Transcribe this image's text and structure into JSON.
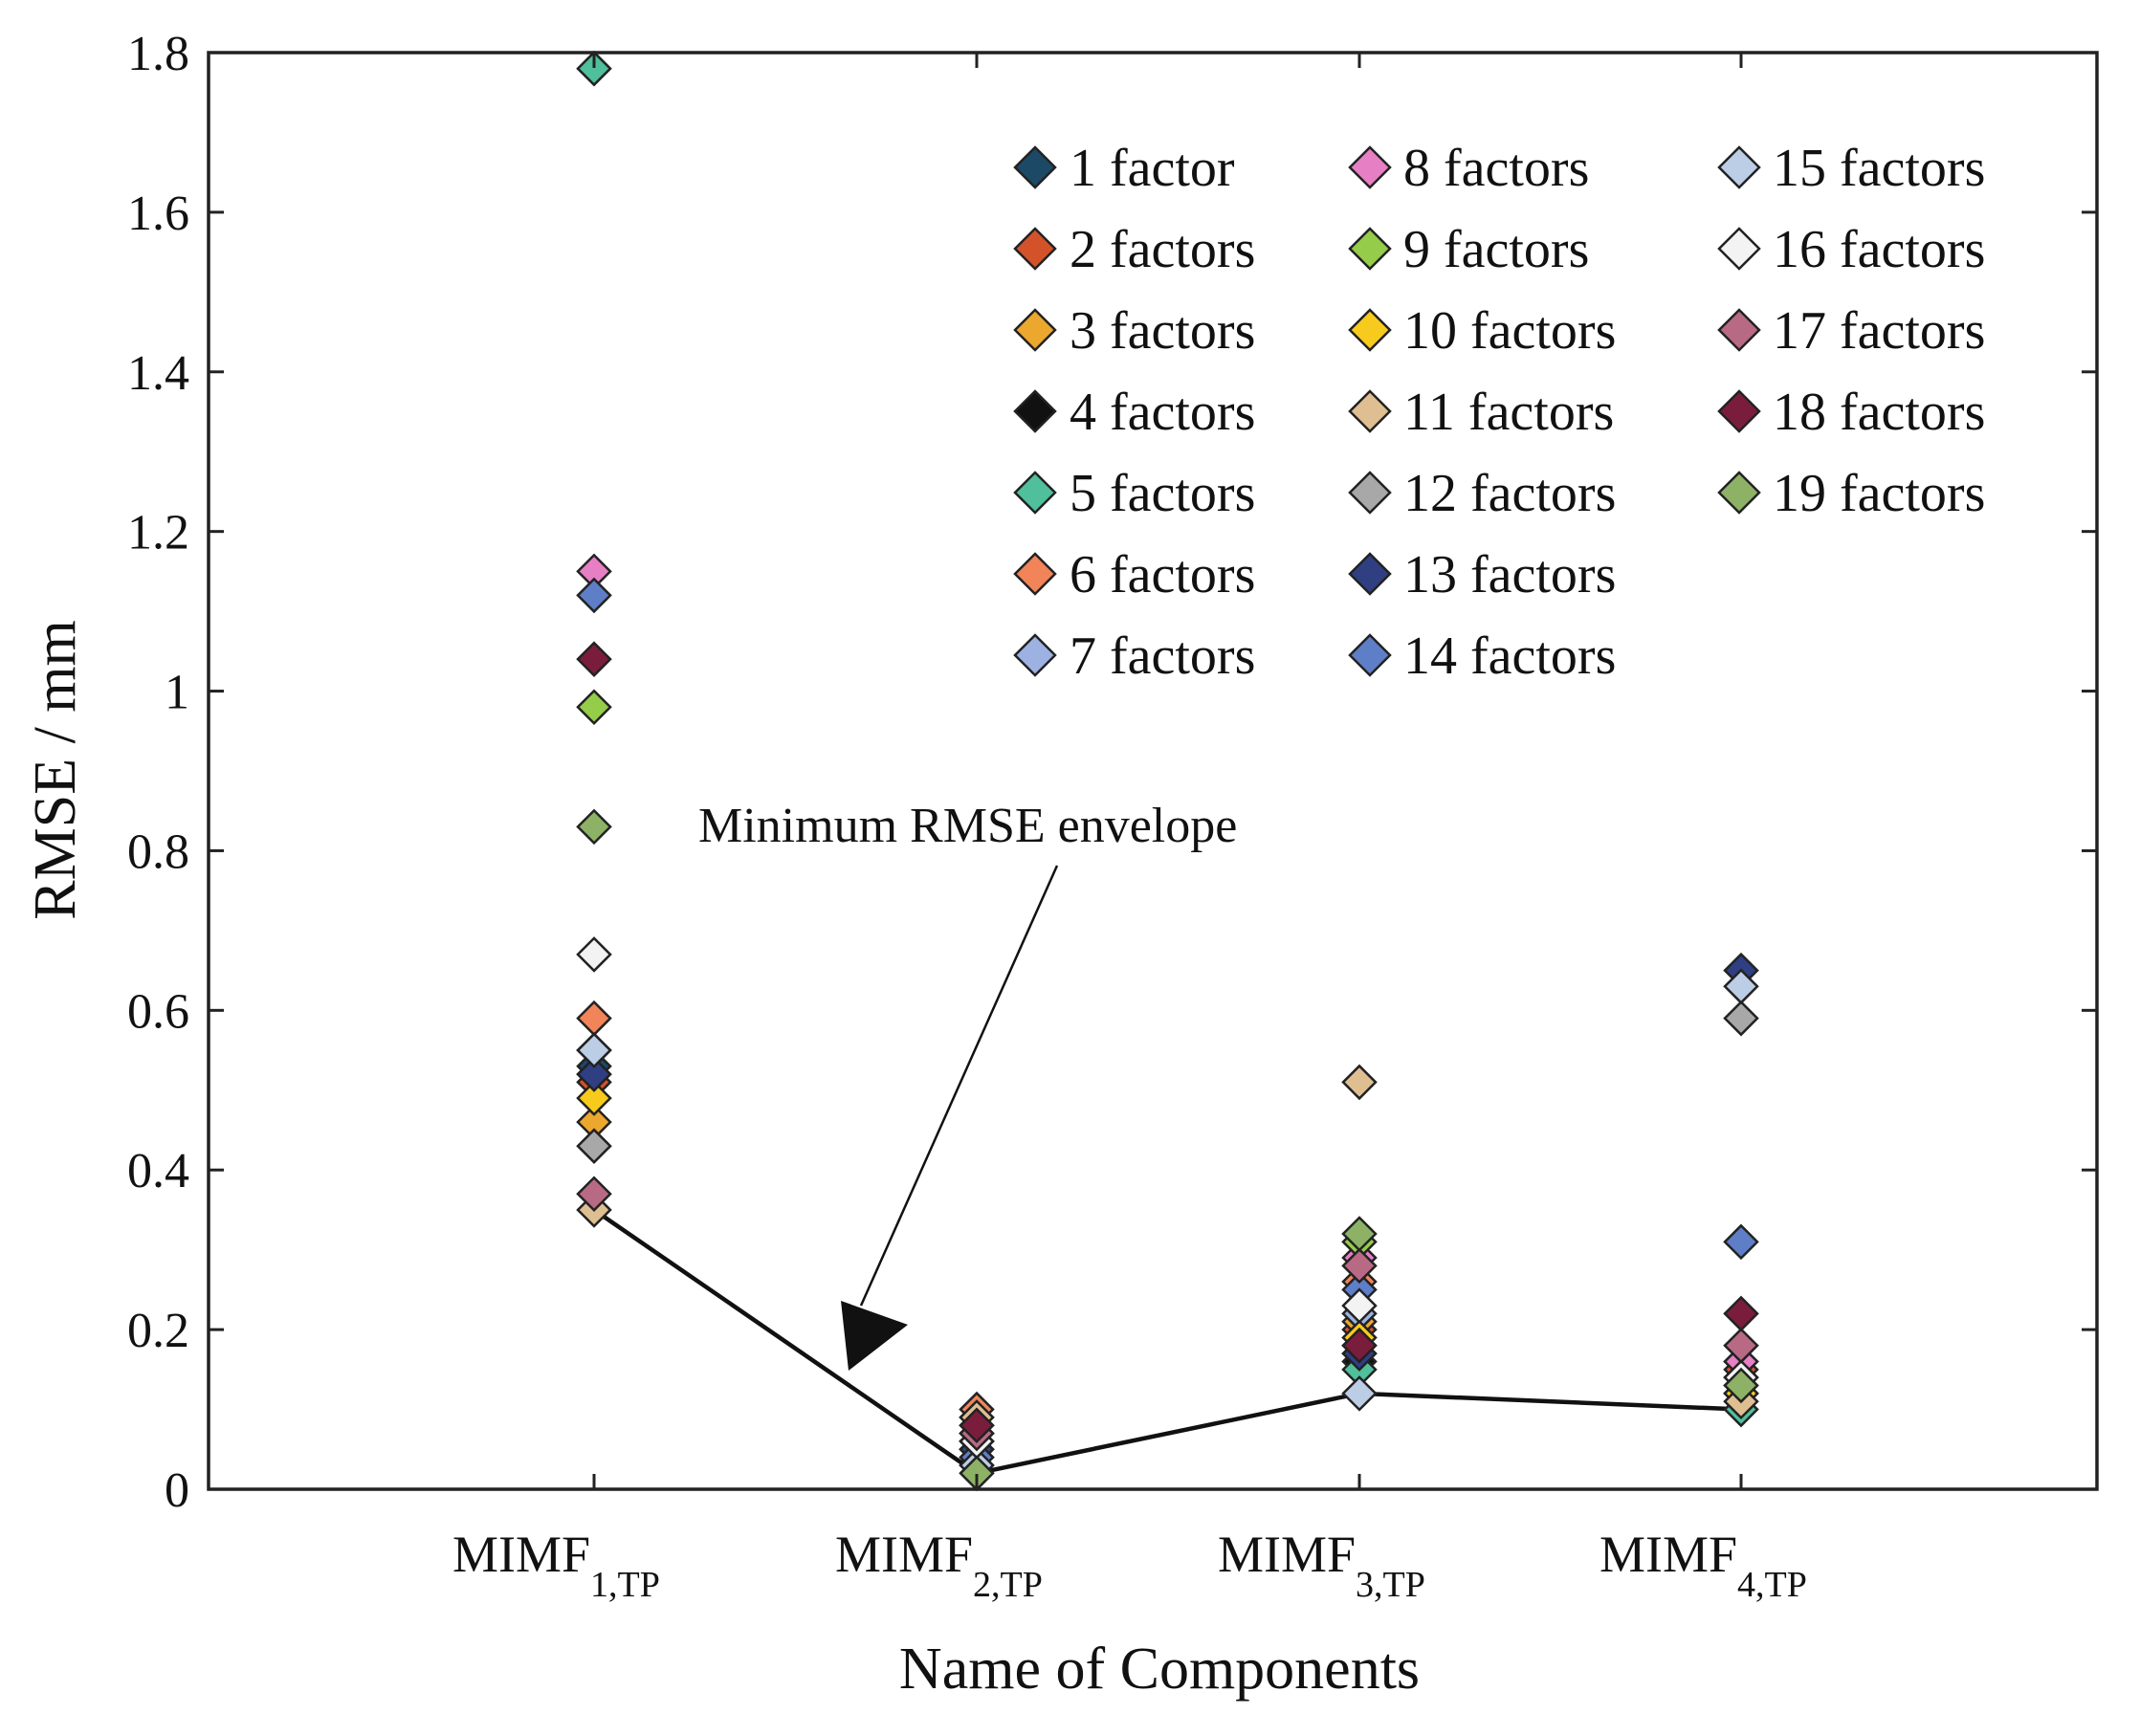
{
  "chart_data": {
    "type": "scatter",
    "title": "",
    "xlabel": "Name of Components",
    "ylabel": "RMSE / mm",
    "ylim": [
      0,
      1.8
    ],
    "yticks": [
      0,
      0.2,
      0.4,
      0.6,
      0.8,
      1,
      1.2,
      1.4,
      1.6,
      1.8
    ],
    "ytick_labels": [
      "0",
      "0.2",
      "0.4",
      "0.6",
      "0.8",
      "1",
      "1.2",
      "1.4",
      "1.6",
      "1.8"
    ],
    "categories": [
      {
        "main": "MIMF",
        "sub": "1,TP"
      },
      {
        "main": "MIMF",
        "sub": "2,TP"
      },
      {
        "main": "MIMF",
        "sub": "3,TP"
      },
      {
        "main": "MIMF",
        "sub": "4,TP"
      }
    ],
    "legend_position": "top-right",
    "series": [
      {
        "name": "1 factor",
        "color": "#1c4966",
        "values": [
          0.53,
          0.05,
          0.17,
          0.13
        ]
      },
      {
        "name": "2 factors",
        "color": "#d4522a",
        "values": [
          0.51,
          0.09,
          0.2,
          0.15
        ]
      },
      {
        "name": "3 factors",
        "color": "#eca72e",
        "values": [
          0.46,
          0.07,
          0.21,
          0.12
        ]
      },
      {
        "name": "4 factors",
        "color": "#111111",
        "values": [
          0.52,
          0.04,
          0.16,
          0.14
        ]
      },
      {
        "name": "5 factors",
        "color": "#4fbf9c",
        "values": [
          1.78,
          0.03,
          0.15,
          0.1
        ]
      },
      {
        "name": "6 factors",
        "color": "#f2845a",
        "values": [
          0.59,
          0.1,
          0.26,
          0.16
        ]
      },
      {
        "name": "7 factors",
        "color": "#9db2e3",
        "values": [
          0.55,
          0.06,
          0.22,
          0.12
        ]
      },
      {
        "name": "8 factors",
        "color": "#e77fc4",
        "values": [
          1.15,
          0.08,
          0.29,
          0.16
        ]
      },
      {
        "name": "9 factors",
        "color": "#95cc4a",
        "values": [
          0.98,
          0.05,
          0.31,
          0.12
        ]
      },
      {
        "name": "10 factors",
        "color": "#f7cb1d",
        "values": [
          0.49,
          0.06,
          0.19,
          0.12
        ]
      },
      {
        "name": "11 factors",
        "color": "#dfbf92",
        "values": [
          0.35,
          0.09,
          0.51,
          0.11
        ]
      },
      {
        "name": "12 factors",
        "color": "#a8a8a8",
        "values": [
          0.43,
          0.07,
          0.18,
          0.59
        ]
      },
      {
        "name": "13 factors",
        "color": "#2f3f82",
        "values": [
          0.52,
          0.05,
          0.17,
          0.65
        ]
      },
      {
        "name": "14 factors",
        "color": "#5f7ec8",
        "values": [
          1.12,
          0.04,
          0.25,
          0.31
        ]
      },
      {
        "name": "15 factors",
        "color": "#bccde6",
        "values": [
          0.55,
          0.03,
          0.12,
          0.63
        ]
      },
      {
        "name": "16 factors",
        "color": "#f3f3f3",
        "values": [
          0.67,
          0.06,
          0.23,
          0.14
        ]
      },
      {
        "name": "17 factors",
        "color": "#b86a84",
        "values": [
          0.37,
          0.07,
          0.28,
          0.18
        ]
      },
      {
        "name": "18 factors",
        "color": "#7a1d3c",
        "values": [
          1.04,
          0.08,
          0.18,
          0.22
        ]
      },
      {
        "name": "19 factors",
        "color": "#8db265",
        "values": [
          0.83,
          0.02,
          0.32,
          0.13
        ]
      }
    ],
    "envelope": {
      "name": "Minimum RMSE envelope",
      "values": [
        0.35,
        0.02,
        0.12,
        0.1
      ]
    },
    "annotation": "Minimum RMSE envelope"
  }
}
